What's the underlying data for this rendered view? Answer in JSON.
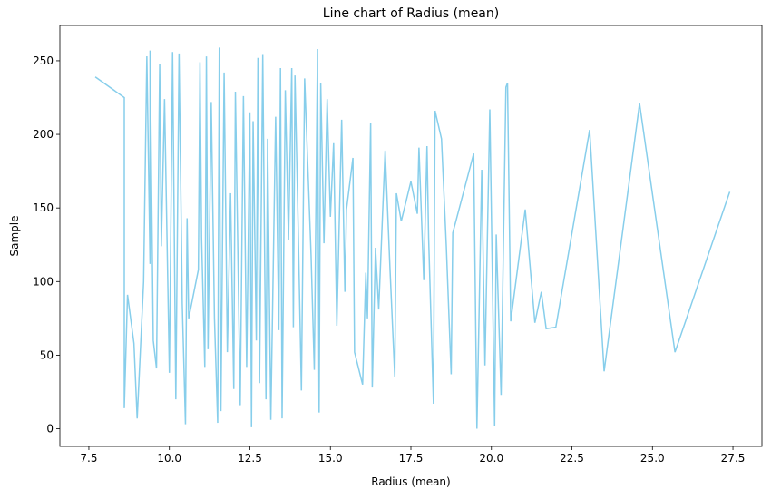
{
  "chart_data": {
    "type": "line",
    "title": "Line chart of Radius (mean)",
    "x_label": "Radius (mean)",
    "y_label": "Sample",
    "x": [
      7.7,
      8.6,
      8.6,
      8.7,
      8.9,
      9.0,
      9.2,
      9.3,
      9.4,
      9.4,
      9.5,
      9.6,
      9.7,
      9.75,
      9.85,
      10.0,
      10.1,
      10.2,
      10.3,
      10.4,
      10.5,
      10.55,
      10.6,
      10.9,
      10.95,
      11.0,
      11.1,
      11.15,
      11.2,
      11.3,
      11.4,
      11.5,
      11.55,
      11.6,
      11.7,
      11.8,
      11.9,
      12.0,
      12.05,
      12.2,
      12.3,
      12.4,
      12.5,
      12.55,
      12.6,
      12.7,
      12.75,
      12.8,
      12.9,
      13.0,
      13.05,
      13.15,
      13.3,
      13.4,
      13.45,
      13.5,
      13.6,
      13.7,
      13.8,
      13.85,
      13.9,
      14.0,
      14.1,
      14.2,
      14.4,
      14.5,
      14.6,
      14.65,
      14.7,
      14.8,
      14.9,
      15.0,
      15.1,
      15.2,
      15.35,
      15.45,
      15.5,
      15.7,
      15.75,
      16.0,
      16.1,
      16.15,
      16.25,
      16.3,
      16.4,
      16.5,
      16.7,
      16.85,
      17.0,
      17.05,
      17.2,
      17.5,
      17.7,
      17.75,
      17.9,
      18.0,
      18.05,
      18.2,
      18.25,
      18.45,
      18.6,
      18.75,
      18.8,
      19.45,
      19.55,
      19.7,
      19.8,
      19.95,
      20.1,
      20.15,
      20.3,
      20.45,
      20.5,
      20.6,
      21.05,
      21.35,
      21.55,
      21.7,
      22.0,
      23.05,
      23.5,
      24.6,
      25.7,
      27.4
    ],
    "series": [
      {
        "name": "Sample",
        "color": "#87ceeb",
        "values": [
          239,
          225,
          14,
          91,
          58,
          7,
          100,
          253,
          112,
          257,
          60,
          41,
          248,
          124,
          224,
          38,
          256,
          20,
          255,
          85,
          3,
          143,
          75,
          108,
          249,
          130,
          42,
          253,
          54,
          222,
          75,
          4,
          259,
          12,
          242,
          52,
          160,
          27,
          229,
          16,
          226,
          42,
          215,
          1,
          209,
          60,
          252,
          31,
          254,
          20,
          197,
          6,
          212,
          67,
          245,
          7,
          230,
          128,
          245,
          69,
          240,
          137,
          26,
          238,
          118,
          40,
          258,
          11,
          235,
          126,
          224,
          144,
          194,
          70,
          210,
          93,
          149,
          184,
          52,
          30,
          106,
          75,
          208,
          28,
          123,
          81,
          189,
          109,
          35,
          160,
          141,
          168,
          146,
          191,
          101,
          192,
          130,
          17,
          216,
          197,
          124,
          37,
          133,
          187,
          0,
          176,
          43,
          217,
          2,
          132,
          23,
          232,
          235,
          73,
          149,
          72,
          93,
          68,
          69,
          203,
          39,
          221,
          52,
          161
        ]
      }
    ],
    "xlim": [
      6.6,
      28.4
    ],
    "ylim": [
      -12,
      274
    ],
    "xticks": [
      7.5,
      {
        "value": 10,
        "label": "10.0"
      },
      12.5,
      {
        "value": 15,
        "label": "15.0"
      },
      17.5,
      {
        "value": 20,
        "label": "20.0"
      },
      22.5,
      {
        "value": 25,
        "label": "25.0"
      },
      27.5
    ],
    "yticks": [
      0,
      50,
      100,
      150,
      200,
      250
    ]
  }
}
